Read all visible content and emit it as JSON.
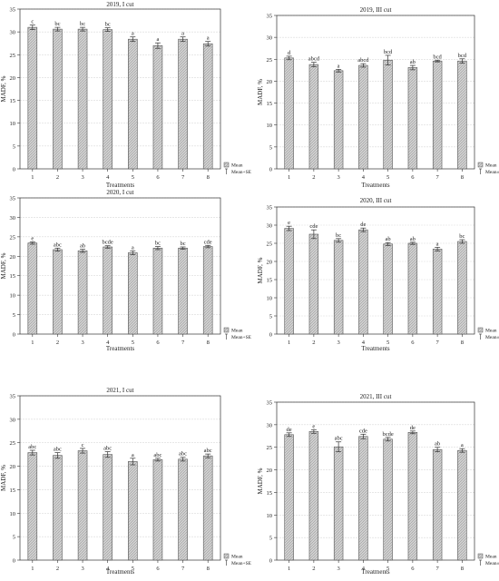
{
  "figure": {
    "legend": {
      "mean": "Mean",
      "mean_se_plus": "Mean+SE",
      "mean_se_pm": "Mean±SE"
    }
  },
  "colors": {
    "bar_fill": "#d2d2d2",
    "bar_stroke": "#555555",
    "axis": "#333333",
    "grid": "#d9d9d9",
    "text": "#222222"
  },
  "chart_data": [
    {
      "type": "bar",
      "title": "2019, I cut",
      "xlabel": "Treatments",
      "ylabel": "MADF, %",
      "categories": [
        "1",
        "2",
        "3",
        "4",
        "5",
        "6",
        "7",
        "8"
      ],
      "values": [
        31.0,
        30.6,
        30.6,
        30.5,
        28.4,
        27.0,
        28.4,
        27.4
      ],
      "se": [
        0.5,
        0.4,
        0.4,
        0.4,
        0.5,
        0.6,
        0.5,
        0.5
      ],
      "letters": [
        "c",
        "bc",
        "bc",
        "bc",
        "a",
        "a",
        "a",
        "a"
      ],
      "ylim": [
        0,
        35
      ],
      "yticks": [
        0,
        5,
        10,
        15,
        20,
        25,
        30,
        35
      ],
      "legend_position": "bottom-right",
      "legend_items": [
        "Mean",
        "Mean+SE"
      ]
    },
    {
      "type": "bar",
      "title": "2019, III cut",
      "xlabel": "Treatments",
      "ylabel": "MADF, %",
      "categories": [
        "1",
        "2",
        "3",
        "4",
        "5",
        "6",
        "7",
        "8"
      ],
      "values": [
        25.3,
        23.8,
        22.4,
        23.6,
        24.8,
        23.1,
        24.6,
        24.6
      ],
      "se": [
        0.4,
        0.5,
        0.3,
        0.4,
        1.1,
        0.5,
        0.2,
        0.5
      ],
      "letters": [
        "d",
        "abcd",
        "a",
        "abcd",
        "bcd",
        "ab",
        "bcd",
        "bcd"
      ],
      "ylim": [
        0,
        35
      ],
      "yticks": [
        0,
        5,
        10,
        15,
        20,
        25,
        30,
        35
      ],
      "legend_position": "bottom-right",
      "legend_items": [
        "Mean",
        "Mean±SE"
      ]
    },
    {
      "type": "bar",
      "title": "2020, I cut",
      "xlabel": "Treatments",
      "ylabel": "MADF, %",
      "categories": [
        "1",
        "2",
        "3",
        "4",
        "5",
        "6",
        "7",
        "8"
      ],
      "values": [
        23.4,
        21.7,
        21.4,
        22.4,
        20.9,
        22.1,
        22.1,
        22.5
      ],
      "se": [
        0.3,
        0.4,
        0.4,
        0.3,
        0.5,
        0.4,
        0.3,
        0.3
      ],
      "letters": [
        "e",
        "abc",
        "ab",
        "bcde",
        "a",
        "bc",
        "bc",
        "cde"
      ],
      "ylim": [
        0,
        35
      ],
      "yticks": [
        0,
        5,
        10,
        15,
        20,
        25,
        30,
        35
      ],
      "legend_position": "bottom-right",
      "legend_items": [
        "Mean",
        "Mean+SE"
      ]
    },
    {
      "type": "bar",
      "title": "2020, III cut",
      "xlabel": "Treatments",
      "ylabel": "MADF, %",
      "categories": [
        "1",
        "2",
        "3",
        "4",
        "5",
        "6",
        "7",
        "8"
      ],
      "values": [
        29.1,
        27.5,
        25.8,
        28.7,
        24.8,
        25.0,
        23.4,
        25.5
      ],
      "se": [
        0.6,
        1.2,
        0.5,
        0.5,
        0.4,
        0.3,
        0.5,
        0.5
      ],
      "letters": [
        "e",
        "cde",
        "bc",
        "de",
        "ab",
        "ab",
        "a",
        "bc"
      ],
      "ylim": [
        0,
        35
      ],
      "yticks": [
        0,
        5,
        10,
        15,
        20,
        25,
        30,
        35
      ],
      "legend_position": "bottom-right",
      "legend_items": [
        "Mean",
        "Mean±SE"
      ]
    },
    {
      "type": "bar",
      "title": "2021, I cut",
      "xlabel": "Treatments",
      "ylabel": "MADF, %",
      "categories": [
        "1",
        "2",
        "3",
        "4",
        "5",
        "6",
        "7",
        "8"
      ],
      "values": [
        22.9,
        22.3,
        23.3,
        22.5,
        21.0,
        21.4,
        21.5,
        22.2
      ],
      "se": [
        0.5,
        0.6,
        0.5,
        0.6,
        0.7,
        0.3,
        0.4,
        0.4
      ],
      "letters": [
        "abc",
        "abc",
        "c",
        "abc",
        "a",
        "abc",
        "abc",
        "abc"
      ],
      "ylim": [
        0,
        35
      ],
      "yticks": [
        0,
        5,
        10,
        15,
        20,
        25,
        30,
        35
      ],
      "legend_position": "bottom-right",
      "legend_items": [
        "Mean",
        "Mean+SE"
      ]
    },
    {
      "type": "bar",
      "title": "2021, III cut",
      "xlabel": "Treatments",
      "ylabel": "MADF, %",
      "categories": [
        "1",
        "2",
        "3",
        "4",
        "5",
        "6",
        "7",
        "8"
      ],
      "values": [
        27.8,
        28.5,
        25.1,
        27.4,
        26.8,
        28.3,
        24.5,
        24.3
      ],
      "se": [
        0.4,
        0.4,
        1.1,
        0.5,
        0.4,
        0.3,
        0.5,
        0.4
      ],
      "letters": [
        "de",
        "e",
        "abc",
        "cde",
        "bcde",
        "de",
        "ab",
        "a"
      ],
      "ylim": [
        0,
        35
      ],
      "yticks": [
        0,
        5,
        10,
        15,
        20,
        25,
        30,
        35
      ],
      "legend_position": "bottom-right",
      "legend_items": [
        "Mean",
        "Mean±SE"
      ]
    }
  ]
}
